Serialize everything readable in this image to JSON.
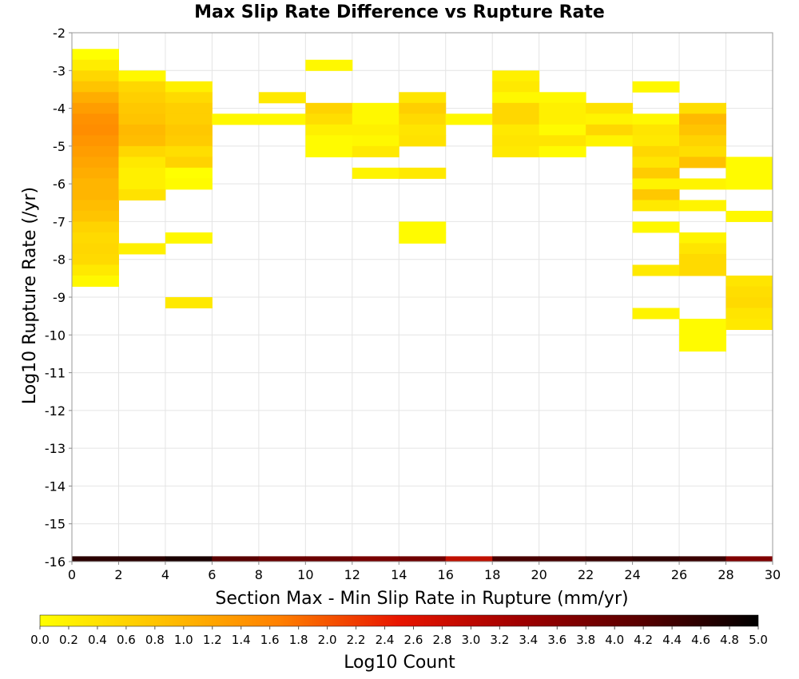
{
  "chart_data": {
    "type": "heatmap",
    "title": "Max Slip Rate Difference vs Rupture Rate",
    "xlabel": "Section Max - Min Slip Rate in Rupture (mm/yr)",
    "ylabel": "Log10 Rupture Rate (/yr)",
    "colorbar_label": "Log10 Count",
    "xlim": [
      0,
      30
    ],
    "ylim": [
      -16,
      -2
    ],
    "x_ticks": [
      "0",
      "2",
      "4",
      "6",
      "8",
      "10",
      "12",
      "14",
      "16",
      "18",
      "20",
      "22",
      "24",
      "26",
      "28",
      "30"
    ],
    "y_ticks": [
      "-2",
      "-3",
      "-4",
      "-5",
      "-6",
      "-7",
      "-8",
      "-9",
      "-10",
      "-11",
      "-12",
      "-13",
      "-14",
      "-15",
      "-16"
    ],
    "colorbar_ticks": [
      "0.0",
      "0.2",
      "0.4",
      "0.6",
      "0.8",
      "1.0",
      "1.2",
      "1.4",
      "1.6",
      "1.8",
      "2.0",
      "2.2",
      "2.4",
      "2.6",
      "2.8",
      "3.0",
      "3.2",
      "3.4",
      "3.6",
      "3.8",
      "4.0",
      "4.2",
      "4.4",
      "4.6",
      "4.8",
      "5.0"
    ],
    "colorbar_range": [
      0,
      5
    ],
    "colormap": [
      "#ffff00",
      "#ffc200",
      "#ff8000",
      "#e81500",
      "#a00000",
      "#5a0000",
      "#000000"
    ],
    "x_bin_width": 2,
    "y_bin_height": 0.2857,
    "grid": true,
    "cells": [
      [
        0,
        -2.714,
        0.0
      ],
      [
        0,
        -3.0,
        0.25
      ],
      [
        0,
        -3.286,
        0.55
      ],
      [
        0,
        -3.571,
        0.8
      ],
      [
        0,
        -3.857,
        1.1
      ],
      [
        0,
        -4.143,
        1.3
      ],
      [
        0,
        -4.429,
        1.45
      ],
      [
        0,
        -4.714,
        1.5
      ],
      [
        0,
        -5.0,
        1.4
      ],
      [
        0,
        -5.286,
        1.3
      ],
      [
        0,
        -5.571,
        1.2
      ],
      [
        0,
        -5.857,
        1.1
      ],
      [
        0,
        -6.143,
        1.0
      ],
      [
        0,
        -6.429,
        1.0
      ],
      [
        0,
        -6.714,
        0.9
      ],
      [
        0,
        -7.0,
        0.8
      ],
      [
        0,
        -7.286,
        0.6
      ],
      [
        0,
        -7.571,
        0.5
      ],
      [
        0,
        -7.857,
        0.55
      ],
      [
        0,
        -8.143,
        0.5
      ],
      [
        0,
        -8.429,
        0.3
      ],
      [
        0,
        -8.714,
        0.1
      ],
      [
        2,
        -3.286,
        0.1
      ],
      [
        2,
        -3.571,
        0.55
      ],
      [
        2,
        -3.857,
        0.65
      ],
      [
        2,
        -4.143,
        0.75
      ],
      [
        2,
        -4.429,
        0.8
      ],
      [
        2,
        -4.714,
        0.95
      ],
      [
        2,
        -5.0,
        0.9
      ],
      [
        2,
        -5.286,
        0.55
      ],
      [
        2,
        -5.571,
        0.3
      ],
      [
        2,
        -5.857,
        0.2
      ],
      [
        2,
        -6.143,
        0.2
      ],
      [
        2,
        -6.429,
        0.4
      ],
      [
        2,
        -7.857,
        0.2
      ],
      [
        4,
        -3.571,
        0.2
      ],
      [
        4,
        -3.857,
        0.5
      ],
      [
        4,
        -4.143,
        0.65
      ],
      [
        4,
        -4.429,
        0.65
      ],
      [
        4,
        -4.714,
        0.75
      ],
      [
        4,
        -5.0,
        0.7
      ],
      [
        4,
        -5.286,
        0.45
      ],
      [
        4,
        -5.571,
        0.6
      ],
      [
        4,
        -5.857,
        0.0
      ],
      [
        4,
        -6.143,
        0.05
      ],
      [
        4,
        -7.571,
        0.1
      ],
      [
        4,
        -9.286,
        0.3
      ],
      [
        6,
        -4.429,
        0.1
      ],
      [
        8,
        -3.857,
        0.3
      ],
      [
        8,
        -4.429,
        0.1
      ],
      [
        10,
        -3.0,
        0.1
      ],
      [
        10,
        -4.143,
        0.6
      ],
      [
        10,
        -4.429,
        0.45
      ],
      [
        10,
        -4.714,
        0.2
      ],
      [
        10,
        -5.0,
        0.05
      ],
      [
        10,
        -5.286,
        0.05
      ],
      [
        12,
        -4.143,
        0.1
      ],
      [
        12,
        -4.429,
        0.1
      ],
      [
        12,
        -4.714,
        0.2
      ],
      [
        12,
        -5.0,
        0.1
      ],
      [
        12,
        -5.286,
        0.3
      ],
      [
        12,
        -5.857,
        0.15
      ],
      [
        14,
        -3.857,
        0.35
      ],
      [
        14,
        -4.143,
        0.65
      ],
      [
        14,
        -4.429,
        0.5
      ],
      [
        14,
        -4.714,
        0.35
      ],
      [
        14,
        -5.0,
        0.4
      ],
      [
        14,
        -5.857,
        0.3
      ],
      [
        14,
        -7.286,
        0.05
      ],
      [
        14,
        -7.571,
        0.05
      ],
      [
        16,
        -4.429,
        0.1
      ],
      [
        18,
        -3.286,
        0.2
      ],
      [
        18,
        -3.571,
        0.3
      ],
      [
        18,
        -3.857,
        0.1
      ],
      [
        18,
        -4.143,
        0.55
      ],
      [
        18,
        -4.429,
        0.55
      ],
      [
        18,
        -4.714,
        0.3
      ],
      [
        18,
        -5.0,
        0.35
      ],
      [
        18,
        -5.286,
        0.3
      ],
      [
        20,
        -3.857,
        0.1
      ],
      [
        20,
        -4.143,
        0.2
      ],
      [
        20,
        -4.429,
        0.2
      ],
      [
        20,
        -4.714,
        0.05
      ],
      [
        20,
        -5.0,
        0.35
      ],
      [
        20,
        -5.286,
        0.05
      ],
      [
        22,
        -4.143,
        0.4
      ],
      [
        22,
        -4.429,
        0.15
      ],
      [
        22,
        -4.714,
        0.55
      ],
      [
        22,
        -5.0,
        0.15
      ],
      [
        24,
        -3.571,
        0.1
      ],
      [
        24,
        -4.429,
        0.1
      ],
      [
        24,
        -4.714,
        0.35
      ],
      [
        24,
        -5.0,
        0.3
      ],
      [
        24,
        -5.286,
        0.55
      ],
      [
        24,
        -5.571,
        0.35
      ],
      [
        24,
        -5.857,
        0.7
      ],
      [
        24,
        -6.143,
        0.15
      ],
      [
        24,
        -6.429,
        0.75
      ],
      [
        24,
        -6.714,
        0.3
      ],
      [
        24,
        -7.286,
        0.1
      ],
      [
        24,
        -8.429,
        0.3
      ],
      [
        24,
        -9.571,
        0.15
      ],
      [
        26,
        -4.143,
        0.45
      ],
      [
        26,
        -4.429,
        0.95
      ],
      [
        26,
        -4.714,
        0.8
      ],
      [
        26,
        -5.0,
        0.6
      ],
      [
        26,
        -5.286,
        0.45
      ],
      [
        26,
        -5.571,
        0.85
      ],
      [
        26,
        -6.143,
        0.15
      ],
      [
        26,
        -6.714,
        0.15
      ],
      [
        26,
        -7.571,
        0.15
      ],
      [
        26,
        -7.857,
        0.35
      ],
      [
        26,
        -8.143,
        0.5
      ],
      [
        26,
        -8.429,
        0.5
      ],
      [
        26,
        -9.857,
        0.05
      ],
      [
        26,
        -10.143,
        0.05
      ],
      [
        26,
        -10.429,
        0.05
      ],
      [
        28,
        -5.571,
        0.05
      ],
      [
        28,
        -5.857,
        0.05
      ],
      [
        28,
        -6.143,
        0.05
      ],
      [
        28,
        -7.0,
        0.1
      ],
      [
        28,
        -8.714,
        0.35
      ],
      [
        28,
        -9.0,
        0.45
      ],
      [
        28,
        -9.286,
        0.5
      ],
      [
        28,
        -9.571,
        0.35
      ],
      [
        28,
        -9.857,
        0.3
      ]
    ],
    "summary_row": {
      "y_bottom": -16,
      "y_top": -15.86,
      "colors": [
        "#2a0000",
        "#2a0000",
        "#1a0000",
        "#5a0000",
        "#6b0000",
        "#6b0000",
        "#780000",
        "#700000",
        "#c01000",
        "#480000",
        "#480000",
        "#3a0000",
        "#300000",
        "#3a0000",
        "#800000"
      ]
    }
  }
}
